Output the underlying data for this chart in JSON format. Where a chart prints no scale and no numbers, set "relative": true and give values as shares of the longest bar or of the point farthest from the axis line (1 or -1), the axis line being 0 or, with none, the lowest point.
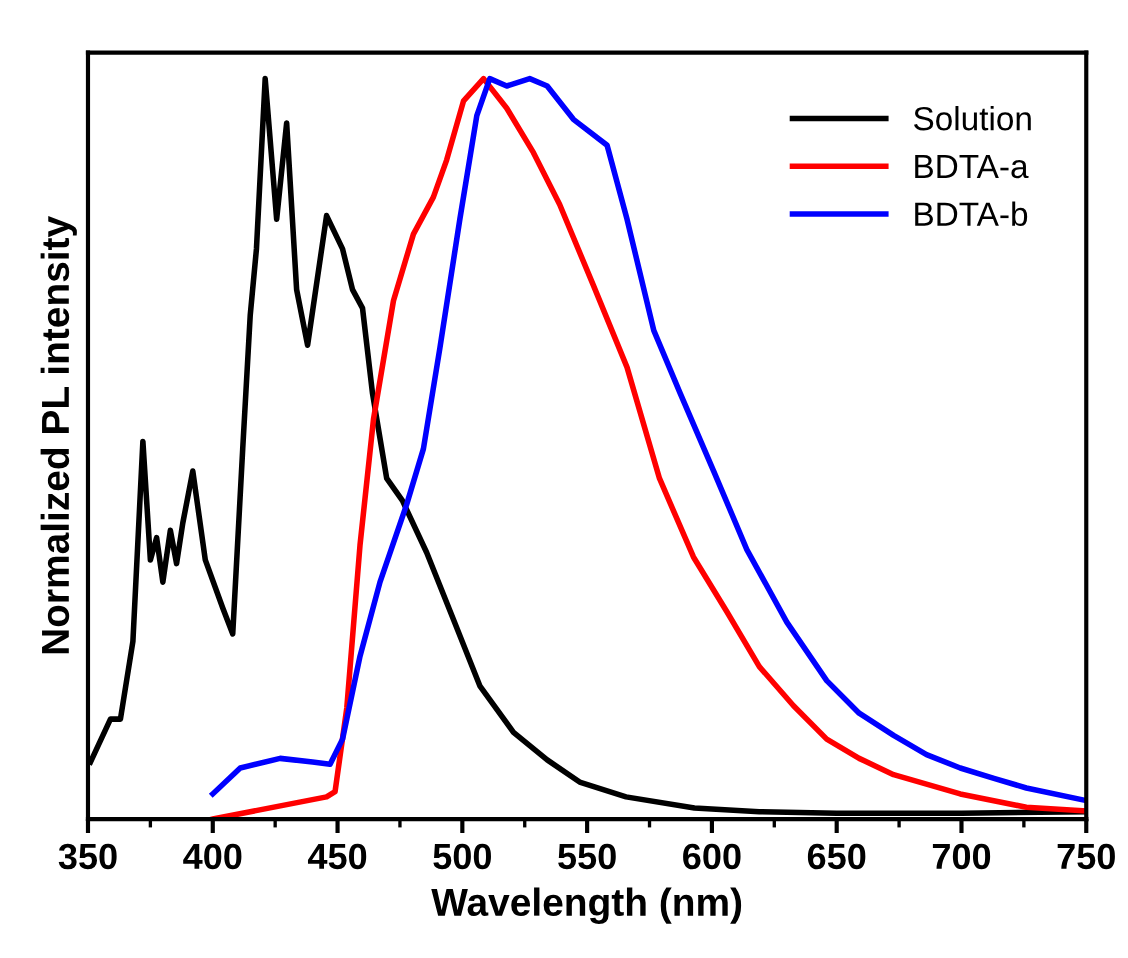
{
  "chart_data": {
    "type": "line",
    "xlabel": "Wavelength (nm)",
    "ylabel": "Normalized PL intensity",
    "relative": true,
    "tick_labels": "x",
    "xlim": [
      350,
      750
    ],
    "xticks": [
      350,
      400,
      450,
      500,
      550,
      600,
      650,
      700,
      750
    ],
    "legend": "top right",
    "grid": false,
    "marker": "none",
    "line_style": "solid",
    "series": [
      {
        "name": "Solution",
        "color": "#000000",
        "x": [
          351,
          359,
          363,
          368,
          372,
          375,
          377.5,
          380,
          383,
          385.5,
          388,
          392,
          397,
          404,
          408,
          412,
          415,
          417.5,
          421,
          425.6,
          429.6,
          433.6,
          438,
          445.6,
          452,
          456,
          460,
          464,
          469.7,
          476,
          485.7,
          496.4,
          507,
          520.5,
          534,
          547,
          565.6,
          593,
          619,
          650,
          700,
          750
        ],
        "values": [
          0.077,
          0.135,
          0.135,
          0.24,
          0.51,
          0.35,
          0.38,
          0.32,
          0.39,
          0.345,
          0.4,
          0.47,
          0.35,
          0.285,
          0.25,
          0.5,
          0.68,
          0.77,
          1.0,
          0.81,
          0.94,
          0.715,
          0.64,
          0.815,
          0.77,
          0.715,
          0.69,
          0.575,
          0.46,
          0.43,
          0.36,
          0.27,
          0.18,
          0.117,
          0.08,
          0.05,
          0.03,
          0.015,
          0.01,
          0.008,
          0.008,
          0.01
        ]
      },
      {
        "name": "BDTA-a",
        "color": "#ff0000",
        "x": [
          400,
          445.6,
          449,
          453.7,
          459,
          464.4,
          472.4,
          480.4,
          488.4,
          493.7,
          500.5,
          508.5,
          517.8,
          528.5,
          539,
          552.6,
          566,
          579,
          592.6,
          606,
          619,
          632.7,
          646,
          659,
          672.8,
          699.5,
          726,
          750
        ],
        "values": [
          0.0,
          0.03,
          0.037,
          0.15,
          0.37,
          0.54,
          0.7,
          0.79,
          0.84,
          0.89,
          0.97,
          1.0,
          0.96,
          0.9,
          0.83,
          0.72,
          0.61,
          0.46,
          0.354,
          0.28,
          0.206,
          0.153,
          0.108,
          0.082,
          0.06,
          0.034,
          0.016,
          0.011
        ]
      },
      {
        "name": "BDTA-b",
        "color": "#0000ff",
        "x": [
          400,
          411,
          427,
          440,
          447,
          452,
          459,
          467,
          477.7,
          484.4,
          491,
          499,
          505.8,
          511,
          517.8,
          527,
          534,
          544.5,
          558,
          566,
          576.7,
          587.3,
          600.7,
          614,
          630,
          646,
          659,
          672.8,
          686,
          699.5,
          713,
          726,
          750
        ],
        "values": [
          0.034,
          0.069,
          0.082,
          0.077,
          0.074,
          0.108,
          0.22,
          0.32,
          0.425,
          0.5,
          0.636,
          0.81,
          0.95,
          1.0,
          0.99,
          1.0,
          0.99,
          0.945,
          0.91,
          0.81,
          0.66,
          0.575,
          0.47,
          0.364,
          0.266,
          0.187,
          0.143,
          0.113,
          0.087,
          0.069,
          0.055,
          0.042,
          0.025
        ]
      }
    ]
  }
}
